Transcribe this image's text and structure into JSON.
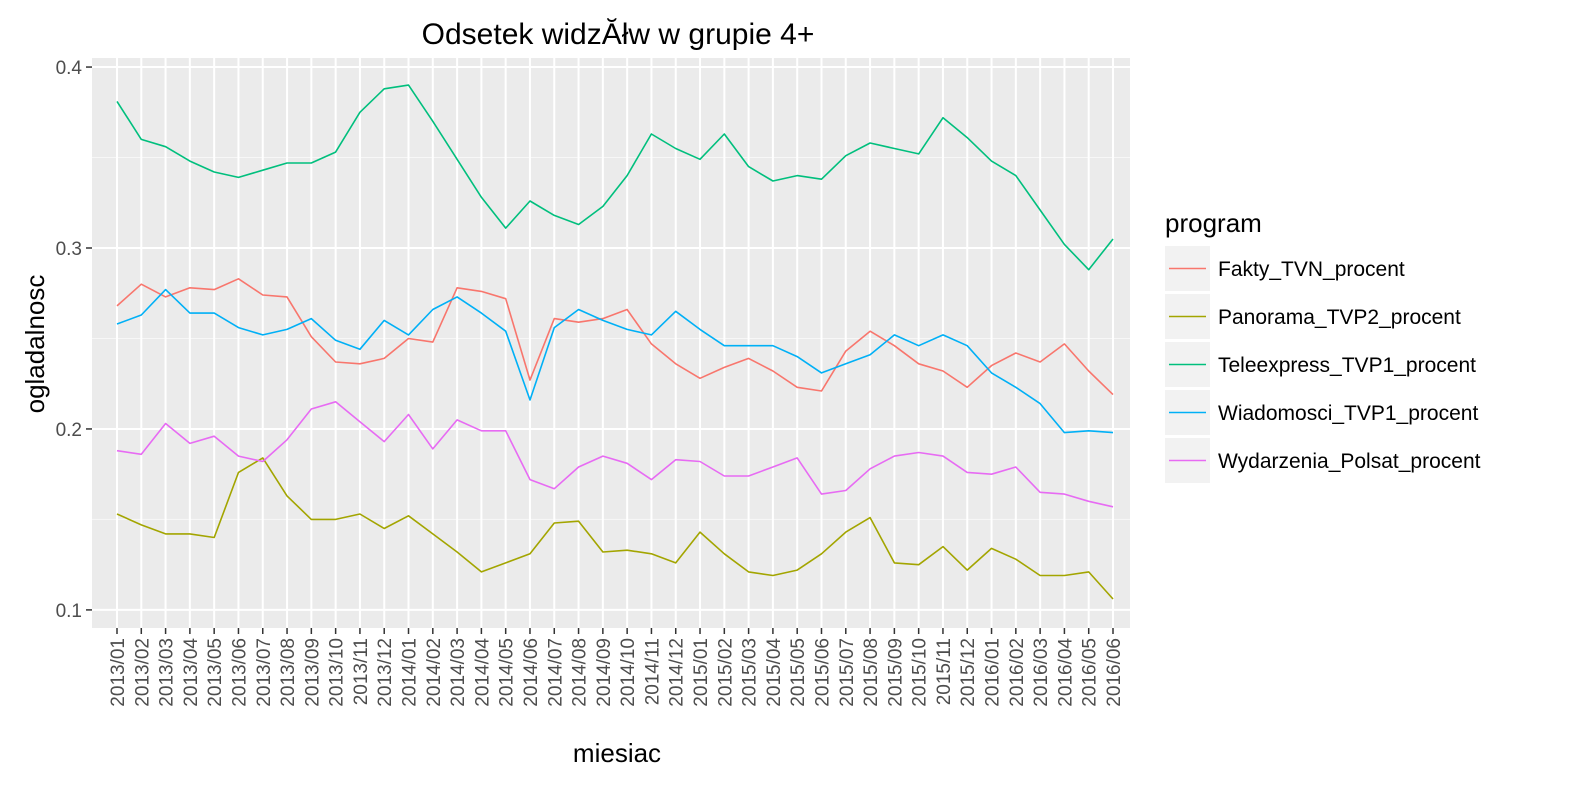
{
  "chart_data": {
    "type": "line",
    "title": "Odsetek widzĂłw w grupie 4+",
    "xlabel": "miesiac",
    "ylabel": "ogladalnosc",
    "ylim": [
      0.09,
      0.405
    ],
    "yticks": [
      0.1,
      0.2,
      0.3,
      0.4
    ],
    "ytick_labels": [
      "0.1",
      "0.2",
      "0.3",
      "0.4"
    ],
    "grid": true,
    "legend_title": "program",
    "legend_position": "right",
    "categories": [
      "2013/01",
      "2013/02",
      "2013/03",
      "2013/04",
      "2013/05",
      "2013/06",
      "2013/07",
      "2013/08",
      "2013/09",
      "2013/10",
      "2013/11",
      "2013/12",
      "2014/01",
      "2014/02",
      "2014/03",
      "2014/04",
      "2014/05",
      "2014/06",
      "2014/07",
      "2014/08",
      "2014/09",
      "2014/10",
      "2014/11",
      "2014/12",
      "2015/01",
      "2015/02",
      "2015/03",
      "2015/04",
      "2015/05",
      "2015/06",
      "2015/07",
      "2015/08",
      "2015/09",
      "2015/10",
      "2015/11",
      "2015/12",
      "2016/01",
      "2016/02",
      "2016/03",
      "2016/04",
      "2016/05",
      "2016/06"
    ],
    "series": [
      {
        "name": "Fakty_TVN_procent",
        "color": "#F8766D",
        "values": [
          0.268,
          0.28,
          0.273,
          0.278,
          0.277,
          0.283,
          0.274,
          0.273,
          0.251,
          0.237,
          0.236,
          0.239,
          0.25,
          0.248,
          0.278,
          0.276,
          0.272,
          0.227,
          0.261,
          0.259,
          0.261,
          0.266,
          0.247,
          0.236,
          0.228,
          0.234,
          0.239,
          0.232,
          0.223,
          0.221,
          0.243,
          0.254,
          0.246,
          0.236,
          0.232,
          0.223,
          0.235,
          0.242,
          0.237,
          0.247,
          0.232,
          0.219
        ]
      },
      {
        "name": "Panorama_TVP2_procent",
        "color": "#A3A500",
        "values": [
          0.153,
          0.147,
          0.142,
          0.142,
          0.14,
          0.176,
          0.184,
          0.163,
          0.15,
          0.15,
          0.153,
          0.145,
          0.152,
          0.142,
          0.132,
          0.121,
          0.126,
          0.131,
          0.148,
          0.149,
          0.132,
          0.133,
          0.131,
          0.126,
          0.143,
          0.131,
          0.121,
          0.119,
          0.122,
          0.131,
          0.143,
          0.151,
          0.126,
          0.125,
          0.135,
          0.122,
          0.134,
          0.128,
          0.119,
          0.119,
          0.121,
          0.106
        ]
      },
      {
        "name": "Teleexpress_TVP1_procent",
        "color": "#00BF7D",
        "values": [
          0.381,
          0.36,
          0.356,
          0.348,
          0.342,
          0.339,
          0.343,
          0.347,
          0.347,
          0.353,
          0.375,
          0.388,
          0.39,
          0.37,
          0.349,
          0.328,
          0.311,
          0.326,
          0.318,
          0.313,
          0.323,
          0.34,
          0.363,
          0.355,
          0.349,
          0.363,
          0.345,
          0.337,
          0.34,
          0.338,
          0.351,
          0.358,
          0.355,
          0.352,
          0.372,
          0.361,
          0.348,
          0.34,
          0.321,
          0.302,
          0.288,
          0.305
        ]
      },
      {
        "name": "Wiadomosci_TVP1_procent",
        "color": "#00B0F6",
        "values": [
          0.258,
          0.263,
          0.277,
          0.264,
          0.264,
          0.256,
          0.252,
          0.255,
          0.261,
          0.249,
          0.244,
          0.26,
          0.252,
          0.266,
          0.273,
          0.264,
          0.254,
          0.216,
          0.256,
          0.266,
          0.26,
          0.255,
          0.252,
          0.265,
          0.255,
          0.246,
          0.246,
          0.246,
          0.24,
          0.231,
          0.236,
          0.241,
          0.252,
          0.246,
          0.252,
          0.246,
          0.231,
          0.223,
          0.214,
          0.198,
          0.199,
          0.198
        ]
      },
      {
        "name": "Wydarzenia_Polsat_procent",
        "color": "#E76BF3",
        "values": [
          0.188,
          0.186,
          0.203,
          0.192,
          0.196,
          0.185,
          0.182,
          0.194,
          0.211,
          0.215,
          0.204,
          0.193,
          0.208,
          0.189,
          0.205,
          0.199,
          0.199,
          0.172,
          0.167,
          0.179,
          0.185,
          0.181,
          0.172,
          0.183,
          0.182,
          0.174,
          0.174,
          0.179,
          0.184,
          0.164,
          0.166,
          0.178,
          0.185,
          0.187,
          0.185,
          0.176,
          0.175,
          0.179,
          0.165,
          0.164,
          0.16,
          0.157
        ]
      }
    ]
  }
}
